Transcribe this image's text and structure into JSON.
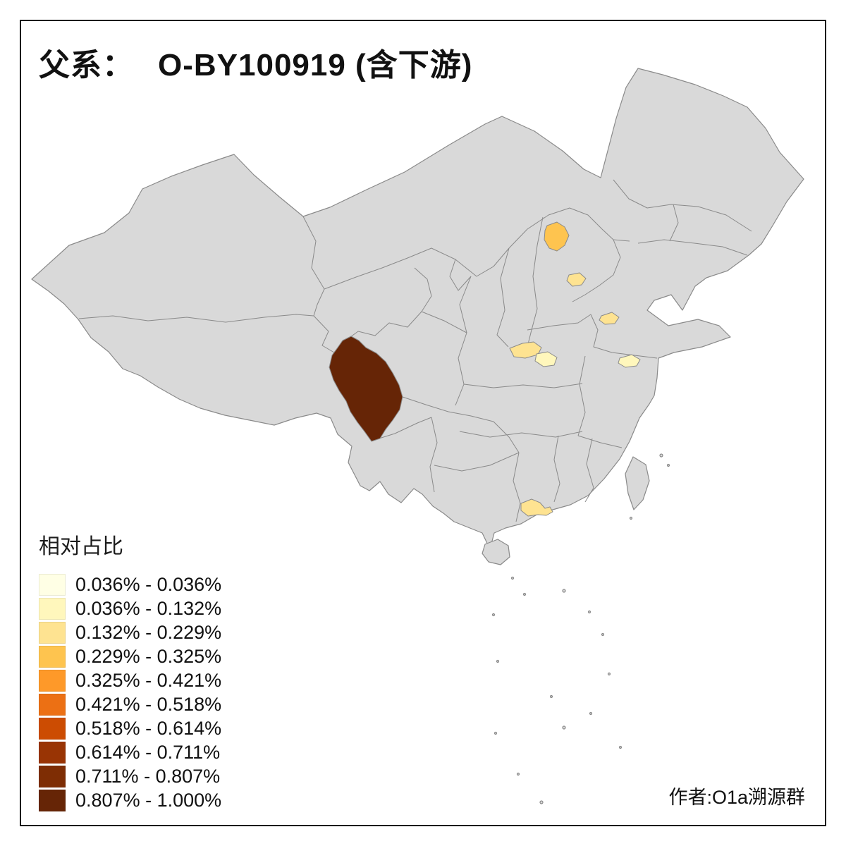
{
  "title": {
    "prefix": "父系：",
    "main": "O-BY100919 (含下游)"
  },
  "legend": {
    "title": "相对占比",
    "classes": [
      {
        "label": "0.036% - 0.036%",
        "color": "#FFFFE5"
      },
      {
        "label": "0.036% - 0.132%",
        "color": "#FFF7BC"
      },
      {
        "label": "0.132% - 0.229%",
        "color": "#FEE391"
      },
      {
        "label": "0.229% - 0.325%",
        "color": "#FEC44F"
      },
      {
        "label": "0.325% - 0.421%",
        "color": "#FE9929"
      },
      {
        "label": "0.421% - 0.518%",
        "color": "#EC7014"
      },
      {
        "label": "0.518% - 0.614%",
        "color": "#CC4C02"
      },
      {
        "label": "0.614% - 0.711%",
        "color": "#993404"
      },
      {
        "label": "0.711% - 0.807%",
        "color": "#7E2D04"
      },
      {
        "label": "0.807% - 1.000%",
        "color": "#662506"
      }
    ]
  },
  "credit": "作者:O1a溯源群",
  "map": {
    "base_fill": "#D9D9D9",
    "border_color": "#8A8A8A",
    "regions": [
      {
        "name": "western-sichuan",
        "color": "#662506",
        "value_class": "0.807% - 1.000%"
      },
      {
        "name": "beijing",
        "color": "#FEC44F",
        "value_class": "0.229% - 0.325%"
      },
      {
        "name": "tianjin-area",
        "color": "#FEE391",
        "value_class": "0.132% - 0.229%"
      },
      {
        "name": "southern-shanxi",
        "color": "#FEE391",
        "value_class": "0.132% - 0.229%"
      },
      {
        "name": "western-henan",
        "color": "#FFF7BC",
        "value_class": "0.036% - 0.132%"
      },
      {
        "name": "western-shandong",
        "color": "#FEE391",
        "value_class": "0.132% - 0.229%"
      },
      {
        "name": "central-jiangsu",
        "color": "#FFF7BC",
        "value_class": "0.036% - 0.132%"
      },
      {
        "name": "pearl-river-delta-guangdong",
        "color": "#FEE391",
        "value_class": "0.132% - 0.229%"
      }
    ]
  }
}
